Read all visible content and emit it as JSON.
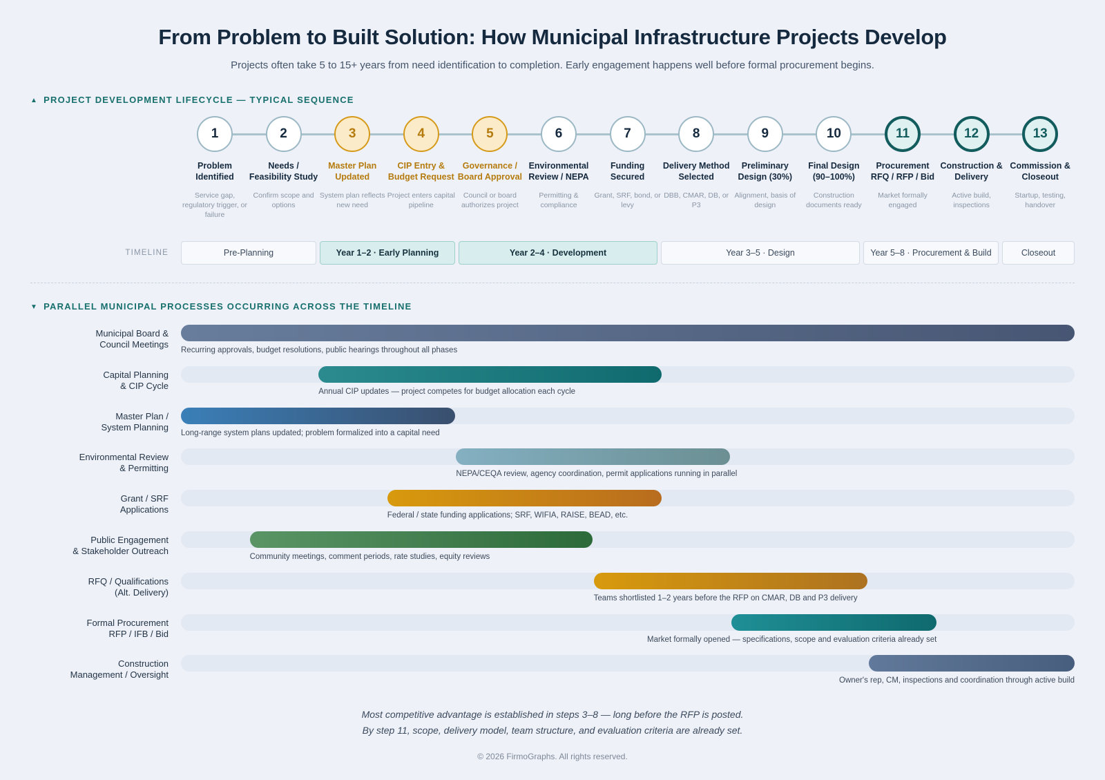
{
  "title": "From Problem to Built Solution: How Municipal Infrastructure Projects Develop",
  "subtitle": "Projects often take 5 to 15+ years from need identification to completion. Early engagement happens well before formal procurement begins.",
  "lifecycle": {
    "heading": "PROJECT DEVELOPMENT LIFECYCLE — TYPICAL SEQUENCE",
    "steps": [
      {
        "num": "1",
        "title": "Problem Identified",
        "desc": "Service gap, regulatory trigger, or failure",
        "stage": "early"
      },
      {
        "num": "2",
        "title": "Needs / Feasibility Study",
        "desc": "Confirm scope and options",
        "stage": "early"
      },
      {
        "num": "3",
        "title": "Master Plan Updated",
        "desc": "System plan reflects new need",
        "stage": "mid"
      },
      {
        "num": "4",
        "title": "CIP Entry & Budget Request",
        "desc": "Project enters capital pipeline",
        "stage": "mid"
      },
      {
        "num": "5",
        "title": "Governance / Board Approval",
        "desc": "Council or board authorizes project",
        "stage": "mid"
      },
      {
        "num": "6",
        "title": "Environmental Review / NEPA",
        "desc": "Permitting & compliance",
        "stage": "early"
      },
      {
        "num": "7",
        "title": "Funding Secured",
        "desc": "Grant, SRF, bond, or levy",
        "stage": "early"
      },
      {
        "num": "8",
        "title": "Delivery Method Selected",
        "desc": "DBB, CMAR, DB, or P3",
        "stage": "early"
      },
      {
        "num": "9",
        "title": "Preliminary Design (30%)",
        "desc": "Alignment, basis of design",
        "stage": "early"
      },
      {
        "num": "10",
        "title": "Final Design (90–100%)",
        "desc": "Construction documents ready",
        "stage": "early"
      },
      {
        "num": "11",
        "title": "Procurement RFQ / RFP / Bid",
        "desc": "Market formally engaged",
        "stage": "late"
      },
      {
        "num": "12",
        "title": "Construction & Delivery",
        "desc": "Active build, inspections",
        "stage": "late"
      },
      {
        "num": "13",
        "title": "Commission & Closeout",
        "desc": "Startup, testing, handover",
        "stage": "late"
      }
    ]
  },
  "timeline": {
    "label": "TIMELINE",
    "phases": [
      {
        "label": "Pre-Planning",
        "highlight": false
      },
      {
        "label": "Year 1–2 · Early Planning",
        "highlight": true
      },
      {
        "label": "Year 2–4 · Development",
        "highlight": true
      },
      {
        "label": "Year 3–5 · Design",
        "highlight": false
      },
      {
        "label": "Year 5–8 · Procurement & Build",
        "highlight": false
      },
      {
        "label": "Closeout",
        "highlight": false
      }
    ]
  },
  "parallel": {
    "heading": "PARALLEL MUNICIPAL PROCESSES OCCURRING ACROSS THE TIMELINE",
    "rows": [
      {
        "label": [
          "Municipal Board &",
          "Council Meetings"
        ],
        "start_step": 1,
        "end_step": 13,
        "note": "Recurring approvals, budget resolutions, public hearings throughout all phases",
        "colors": [
          "#687d9c",
          "#475673"
        ]
      },
      {
        "label": [
          "Capital Planning",
          "& CIP Cycle"
        ],
        "start_step": 3,
        "end_step": 7,
        "note": "Annual CIP updates — project competes for budget allocation each cycle",
        "colors": [
          "#2b8b8e",
          "#0f6a6e"
        ]
      },
      {
        "label": [
          "Master Plan /",
          "System Planning"
        ],
        "start_step": 1,
        "end_step": 4,
        "note": "Long-range system plans updated; problem formalized into a capital need",
        "colors": [
          "#3a7fb8",
          "#3a4f6e"
        ]
      },
      {
        "label": [
          "Environmental Review",
          "& Permitting"
        ],
        "start_step": 5,
        "end_step": 8,
        "note": "NEPA/CEQA review, agency coordination, permit applications running in parallel",
        "colors": [
          "#84b0c2",
          "#6b8f93"
        ]
      },
      {
        "label": [
          "Grant / SRF",
          "Applications"
        ],
        "start_step": 4,
        "end_step": 7,
        "note": "Federal / state funding applications; SRF, WIFIA, RAISE, BEAD, etc.",
        "colors": [
          "#d89a0d",
          "#b86c1e"
        ]
      },
      {
        "label": [
          "Public Engagement",
          "& Stakeholder Outreach"
        ],
        "start_step": 2,
        "end_step": 6,
        "note": "Community meetings, comment periods, rate studies, equity reviews",
        "colors": [
          "#5a9566",
          "#2d6a3a"
        ]
      },
      {
        "label": [
          "RFQ / Qualifications",
          "(Alt. Delivery)"
        ],
        "start_step": 7,
        "end_step": 10,
        "note": "Teams shortlisted 1–2 years before the RFP on CMAR, DB and P3 delivery",
        "colors": [
          "#d89a0d",
          "#ad7220"
        ]
      },
      {
        "label": [
          "Formal Procurement",
          "RFP / IFB / Bid"
        ],
        "start_step": 9,
        "end_step": 11,
        "note": "Market formally opened — specifications, scope and evaluation criteria already set",
        "colors": [
          "#1f8f96",
          "#0f6a6e"
        ]
      },
      {
        "label": [
          "Construction",
          "Management / Oversight"
        ],
        "start_step": 11,
        "end_step": 13,
        "note": "Owner's rep, CM, inspections and coordination through active build",
        "colors": [
          "#61799a",
          "#485e7e"
        ]
      }
    ]
  },
  "footer": {
    "line1": "Most competitive advantage is established in steps 3–8 — long before the RFP is posted.",
    "line2": "By step 11, scope, delivery model, team structure, and evaluation criteria are already set.",
    "copyright": "© 2026 FirmoGraphs. All rights reserved."
  }
}
